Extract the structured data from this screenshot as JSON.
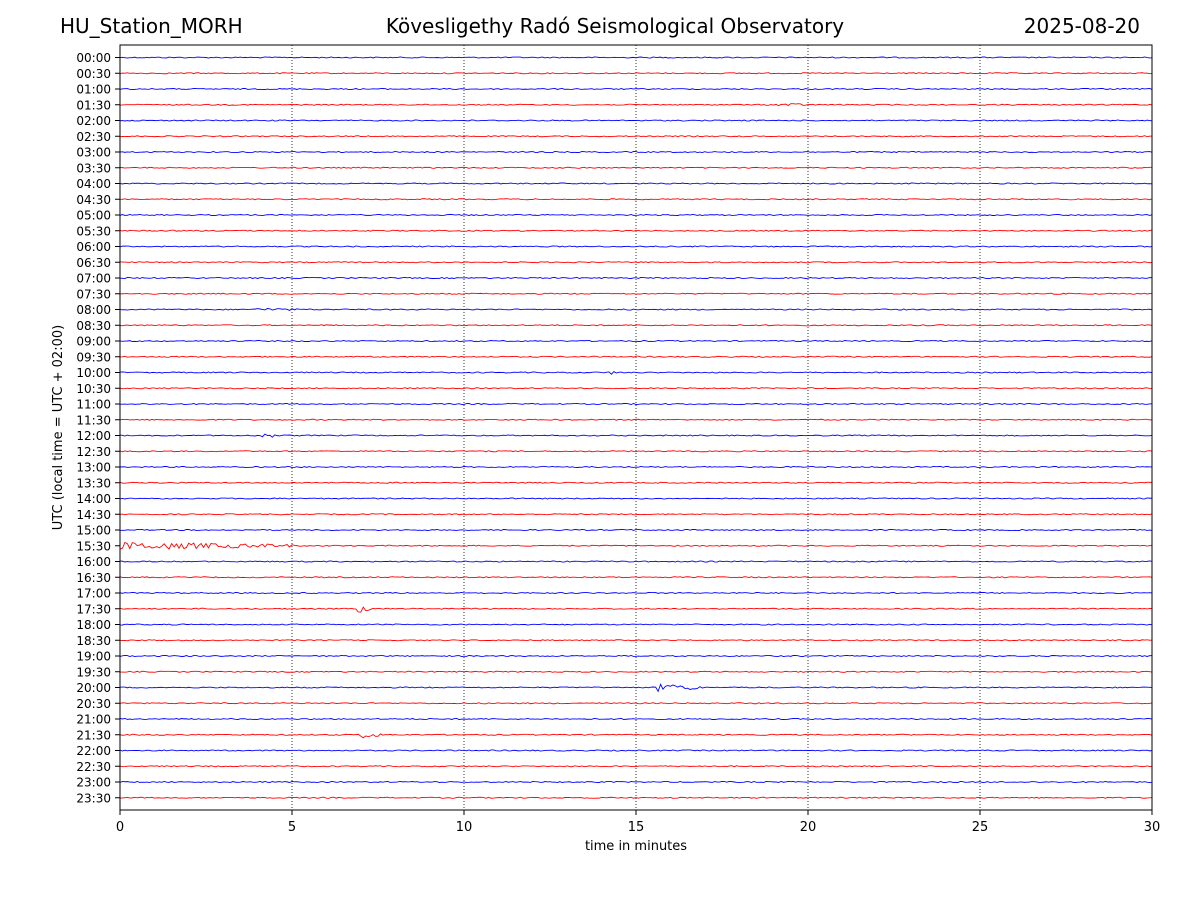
{
  "header": {
    "station": "HU_Station_MORH",
    "title": "Kövesligethy Radó Seismological Observatory",
    "date": "2025-08-20"
  },
  "chart_data": {
    "type": "line",
    "title": "Kövesligethy Radó Seismological Observatory",
    "xlabel": "time in minutes",
    "ylabel": "UTC (local time = UTC + 02:00)",
    "xlim": [
      0,
      30
    ],
    "x_ticks": [
      0,
      5,
      10,
      15,
      20,
      25,
      30
    ],
    "grid": "vertical dotted lines at x ticks",
    "colors": {
      "hour_rows": "#0000ff",
      "half_hour_rows": "#ff0000",
      "grid": "#000000"
    },
    "row_labels": [
      "00:00",
      "00:30",
      "01:00",
      "01:30",
      "02:00",
      "02:30",
      "03:00",
      "03:30",
      "04:00",
      "04:30",
      "05:00",
      "05:30",
      "06:00",
      "06:30",
      "07:00",
      "07:30",
      "08:00",
      "08:30",
      "09:00",
      "09:30",
      "10:00",
      "10:30",
      "11:00",
      "11:30",
      "12:00",
      "12:30",
      "13:00",
      "13:30",
      "14:00",
      "14:30",
      "15:00",
      "15:30",
      "16:00",
      "16:30",
      "17:00",
      "17:30",
      "18:00",
      "18:30",
      "19:00",
      "19:30",
      "20:00",
      "20:30",
      "21:00",
      "21:30",
      "22:00",
      "22:30",
      "23:00",
      "23:30"
    ],
    "events": [
      {
        "row": "01:30",
        "start_min": 19.1,
        "end_min": 20.1,
        "amplitude": 2
      },
      {
        "row": "08:00",
        "start_min": 4.0,
        "end_min": 5.8,
        "amplitude": 1.5
      },
      {
        "row": "10:00",
        "start_min": 14.2,
        "end_min": 14.6,
        "amplitude": 2
      },
      {
        "row": "12:00",
        "start_min": 4.1,
        "end_min": 4.5,
        "amplitude": 4
      },
      {
        "row": "15:30",
        "start_min": 0.0,
        "end_min": 5.0,
        "amplitude": 4
      },
      {
        "row": "17:30",
        "start_min": 6.9,
        "end_min": 7.3,
        "amplitude": 4
      },
      {
        "row": "20:00",
        "start_min": 15.6,
        "end_min": 17.0,
        "amplitude": 4
      },
      {
        "row": "21:30",
        "start_min": 7.0,
        "end_min": 7.6,
        "amplitude": 4
      }
    ]
  }
}
